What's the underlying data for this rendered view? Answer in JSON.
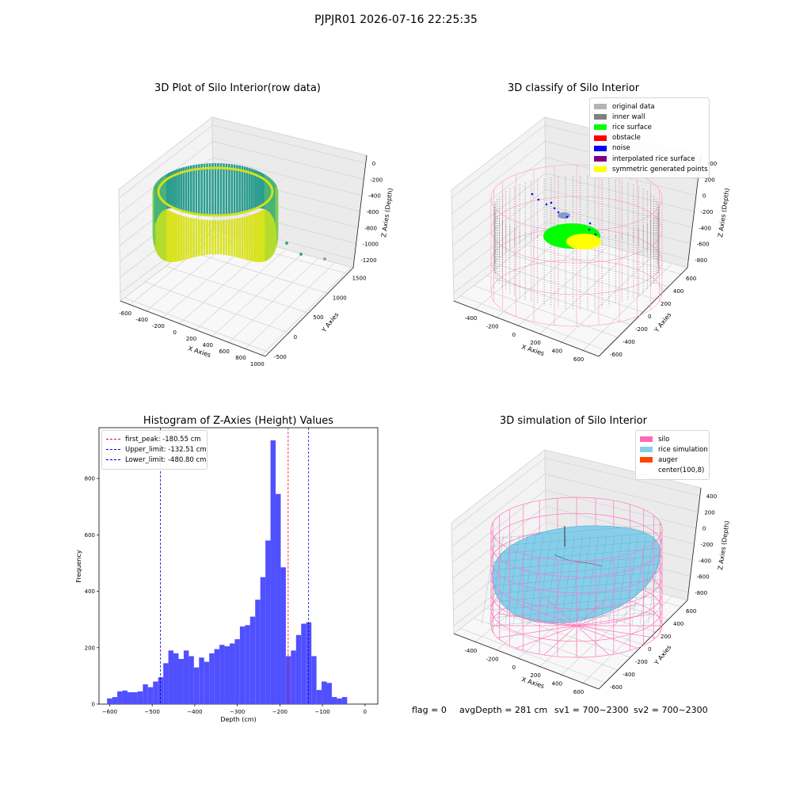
{
  "suptitle": "PJPJR01 2026-07-16 22:25:35",
  "footer": {
    "flag": "flag = 0",
    "avg_depth": "avgDepth = 281 cm",
    "sv1": "sv1 = 700~2300",
    "sv2": "sv2 = 700~2300"
  },
  "chart_data": [
    {
      "type": "scatter",
      "dimension": "3d",
      "title": "3D Plot of Silo Interior(row data)",
      "xlabel": "X Axies",
      "ylabel": "Y Axies",
      "zlabel": "Z Axies (Depth)",
      "x_ticks": [
        -600,
        -400,
        -200,
        0,
        200,
        400,
        600,
        800,
        1000
      ],
      "y_ticks": [
        -500,
        0,
        500,
        1000,
        1500
      ],
      "z_ticks": [
        -1200,
        -1000,
        -800,
        -600,
        -400,
        -200,
        0
      ],
      "colormap": "viridis",
      "description_points": "ring of points coloured by depth, plus a few outliers"
    },
    {
      "type": "scatter",
      "dimension": "3d",
      "title": "3D classify of Silo Interior",
      "xlabel": "X Axies",
      "ylabel": "Y Axies",
      "zlabel": "Z Axies (Depth)",
      "x_ticks": [
        -400,
        -200,
        0,
        200,
        400,
        600
      ],
      "y_ticks": [
        -600,
        -400,
        -200,
        0,
        200,
        400,
        600
      ],
      "z_ticks": [
        -800,
        -600,
        -400,
        -200,
        0,
        200,
        400
      ],
      "legend_placement": "top-right",
      "legend": [
        {
          "label": "original data",
          "color": "#b4b4b4"
        },
        {
          "label": "inner wall",
          "color": "#808080"
        },
        {
          "label": "rice surface",
          "color": "#00ff00"
        },
        {
          "label": "obstacle",
          "color": "#ff0000"
        },
        {
          "label": "noise",
          "color": "#0000ff"
        },
        {
          "label": "interpolated rice surface",
          "color": "#800080"
        },
        {
          "label": "symmetric generated points",
          "color": "#ffff00"
        }
      ]
    },
    {
      "type": "bar",
      "title": "Histogram of Z-Axies (Height) Values",
      "xlabel": "Depth (cm)",
      "ylabel": "Frequency",
      "xlim": [
        -625,
        30
      ],
      "ylim": [
        0,
        980
      ],
      "x_ticks": [
        -600,
        -500,
        -400,
        -300,
        -200,
        -100,
        0
      ],
      "y_ticks": [
        0,
        200,
        400,
        600,
        800
      ],
      "bar_color": "#5050ff",
      "bin_width": 12,
      "bin_starts": [
        -606,
        -594,
        -582,
        -570,
        -558,
        -546,
        -534,
        -522,
        -510,
        -498,
        -486,
        -474,
        -462,
        -450,
        -438,
        -426,
        -414,
        -402,
        -390,
        -378,
        -366,
        -354,
        -342,
        -330,
        -318,
        -306,
        -294,
        -282,
        -270,
        -258,
        -246,
        -234,
        -222,
        -210,
        -198,
        -186,
        -174,
        -162,
        -150,
        -138,
        -126,
        -114,
        -102,
        -90,
        -78,
        -66,
        -54,
        -42,
        -30,
        -18,
        -6
      ],
      "values": [
        20,
        25,
        45,
        48,
        42,
        42,
        45,
        70,
        60,
        80,
        95,
        145,
        190,
        180,
        160,
        190,
        170,
        130,
        165,
        150,
        180,
        195,
        210,
        205,
        215,
        230,
        275,
        280,
        310,
        370,
        450,
        580,
        935,
        745,
        485,
        170,
        190,
        245,
        285,
        290,
        170,
        50,
        80,
        75,
        25,
        20,
        25,
        0,
        0,
        0,
        0
      ],
      "reference_lines": [
        {
          "label": "first_peak: -180.55 cm",
          "x": -180.55,
          "color": "#ff0000",
          "style": "dashed"
        },
        {
          "label": "Upper_limit: -132.51 cm",
          "x": -132.51,
          "color": "#0000cc",
          "style": "dashed"
        },
        {
          "label": "Lower_limit: -480.80 cm",
          "x": -480.8,
          "color": "#0000cc",
          "style": "dashed"
        }
      ],
      "legend_placement": "top-left"
    },
    {
      "type": "scatter",
      "dimension": "3d",
      "title": "3D simulation of Silo Interior",
      "xlabel": "X Axies",
      "ylabel": "Y Axies",
      "zlabel": "Z Axies (Depth)",
      "x_ticks": [
        -400,
        -200,
        0,
        200,
        400,
        600
      ],
      "y_ticks": [
        -600,
        -400,
        -200,
        0,
        200,
        400,
        600
      ],
      "z_ticks": [
        -800,
        -600,
        -400,
        -200,
        0,
        200,
        400
      ],
      "legend_placement": "top-right",
      "legend": [
        {
          "label": "silo",
          "color": "#ff69b4"
        },
        {
          "label": "rice simulation",
          "color": "#87ceeb"
        },
        {
          "label": "auger",
          "color": "#ff4500"
        },
        {
          "label": "center(100,8)",
          "color": "#ffffff"
        }
      ]
    }
  ]
}
